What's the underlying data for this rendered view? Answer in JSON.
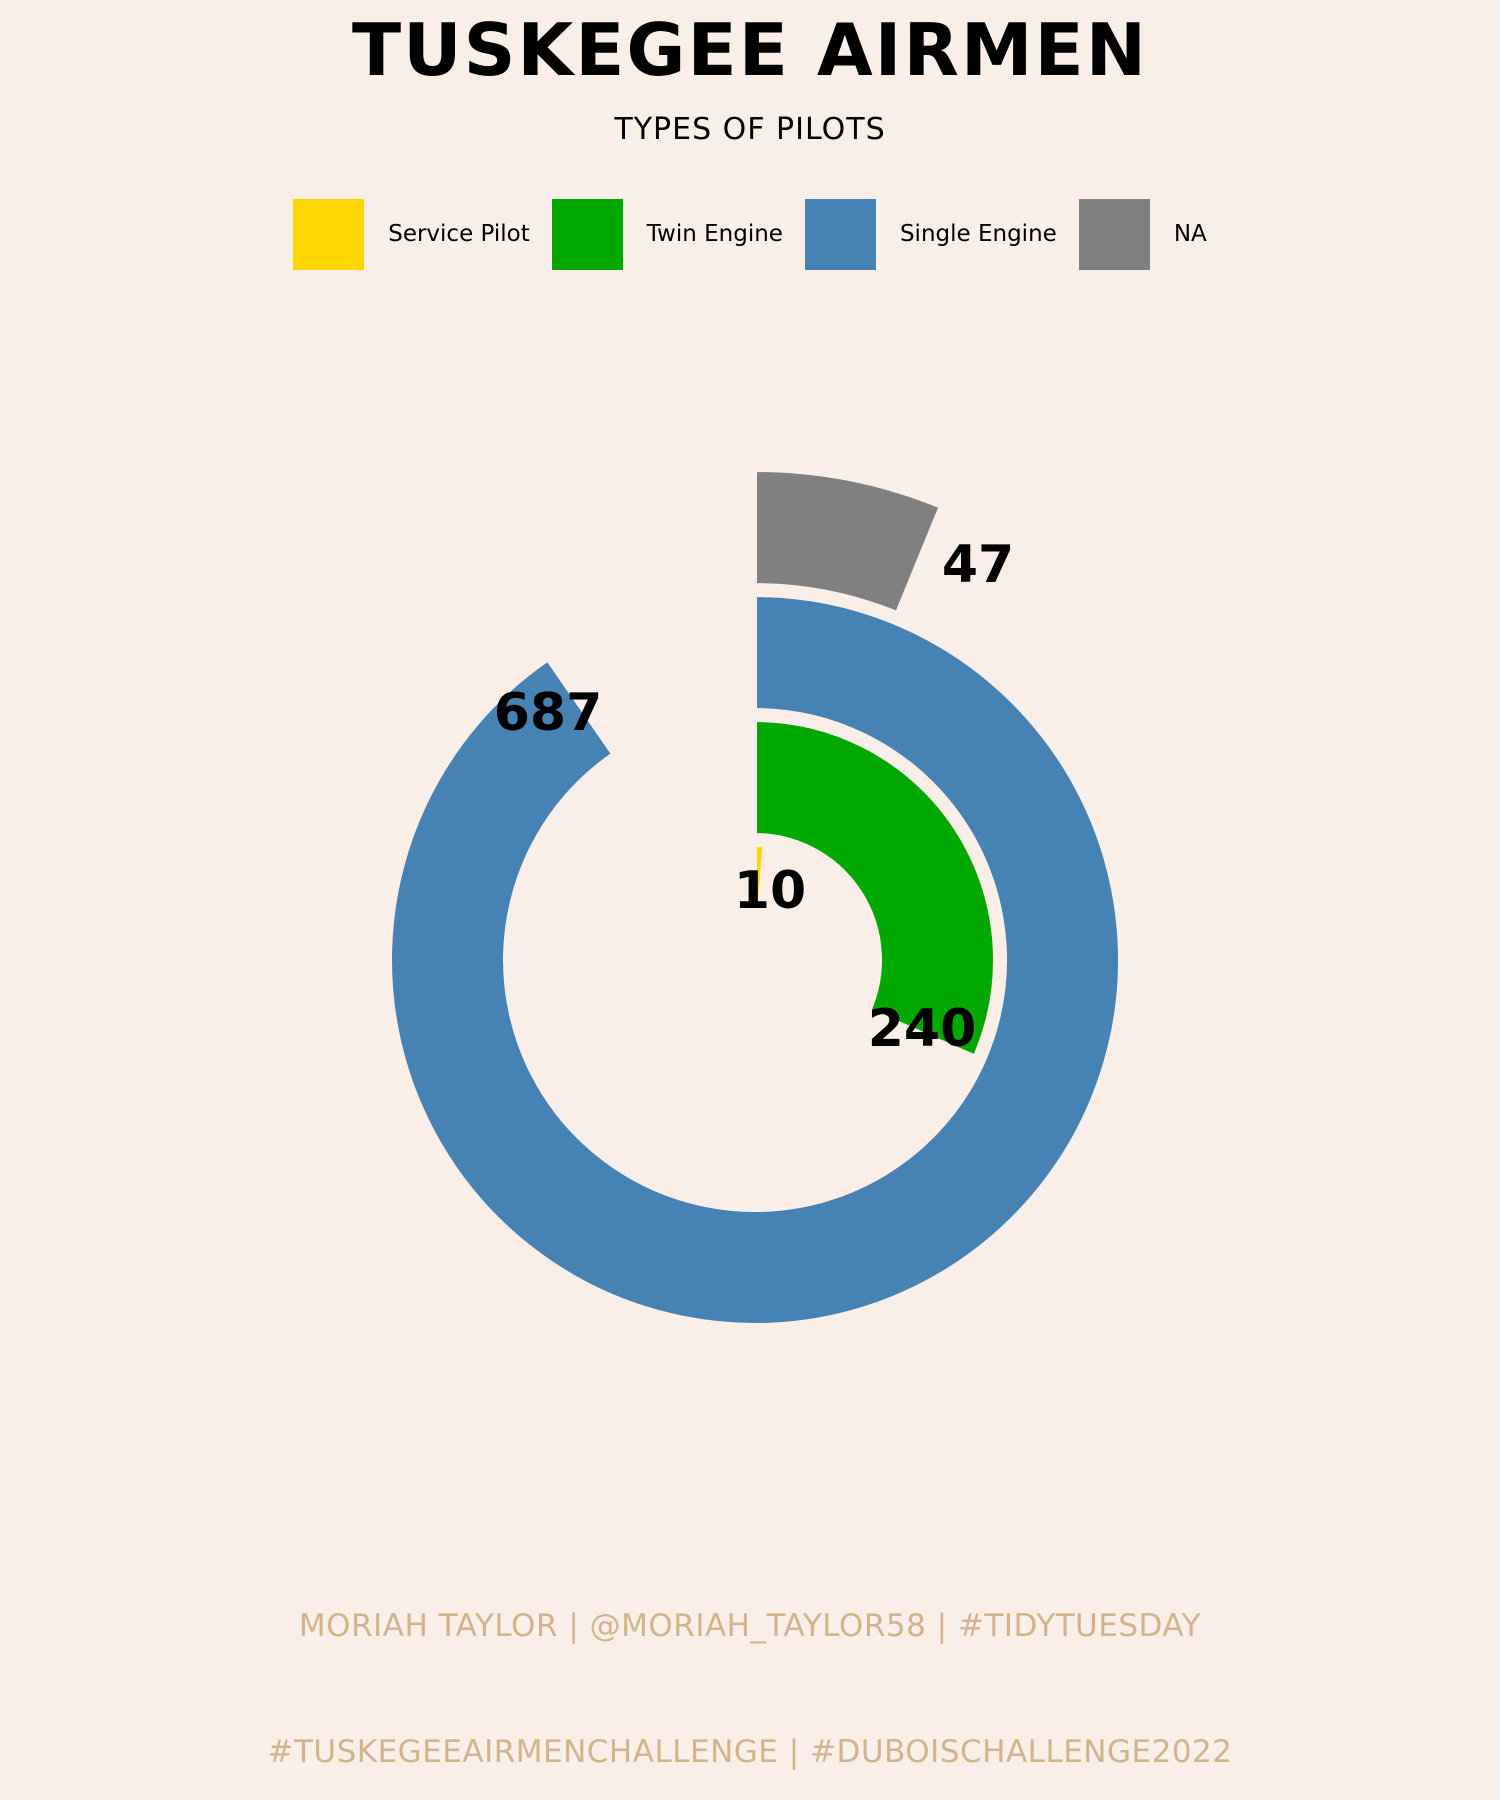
{
  "title": "TUSKEGEE AIRMEN",
  "subtitle": "TYPES OF PILOTS",
  "legend": [
    {
      "label": "Service Pilot",
      "color": "#ffd700"
    },
    {
      "label": "Twin Engine",
      "color": "#00a800"
    },
    {
      "label": "Single Engine",
      "color": "#4682b4"
    },
    {
      "label": "NA",
      "color": "#808080"
    }
  ],
  "caption": {
    "line1": "MORIAH TAYLOR | @MORIAH_TAYLOR58 | #TIDYTUESDAY",
    "line2": "#TUSKEGEEAIRMENCHALLENGE | #DUBOISCHALLENGE2022"
  },
  "chart_data": {
    "type": "radial-bar",
    "series": [
      {
        "name": "Service Pilot",
        "value": 10,
        "color": "#ffd700",
        "label": "10"
      },
      {
        "name": "Twin Engine",
        "value": 240,
        "color": "#00a800",
        "label": "240"
      },
      {
        "name": "Single Engine",
        "value": 687,
        "color": "#4682b4",
        "label": "687"
      },
      {
        "name": "NA",
        "value": 47,
        "color": "#808080",
        "label": "47"
      }
    ],
    "scale_max": 760,
    "legend_position": "top"
  }
}
